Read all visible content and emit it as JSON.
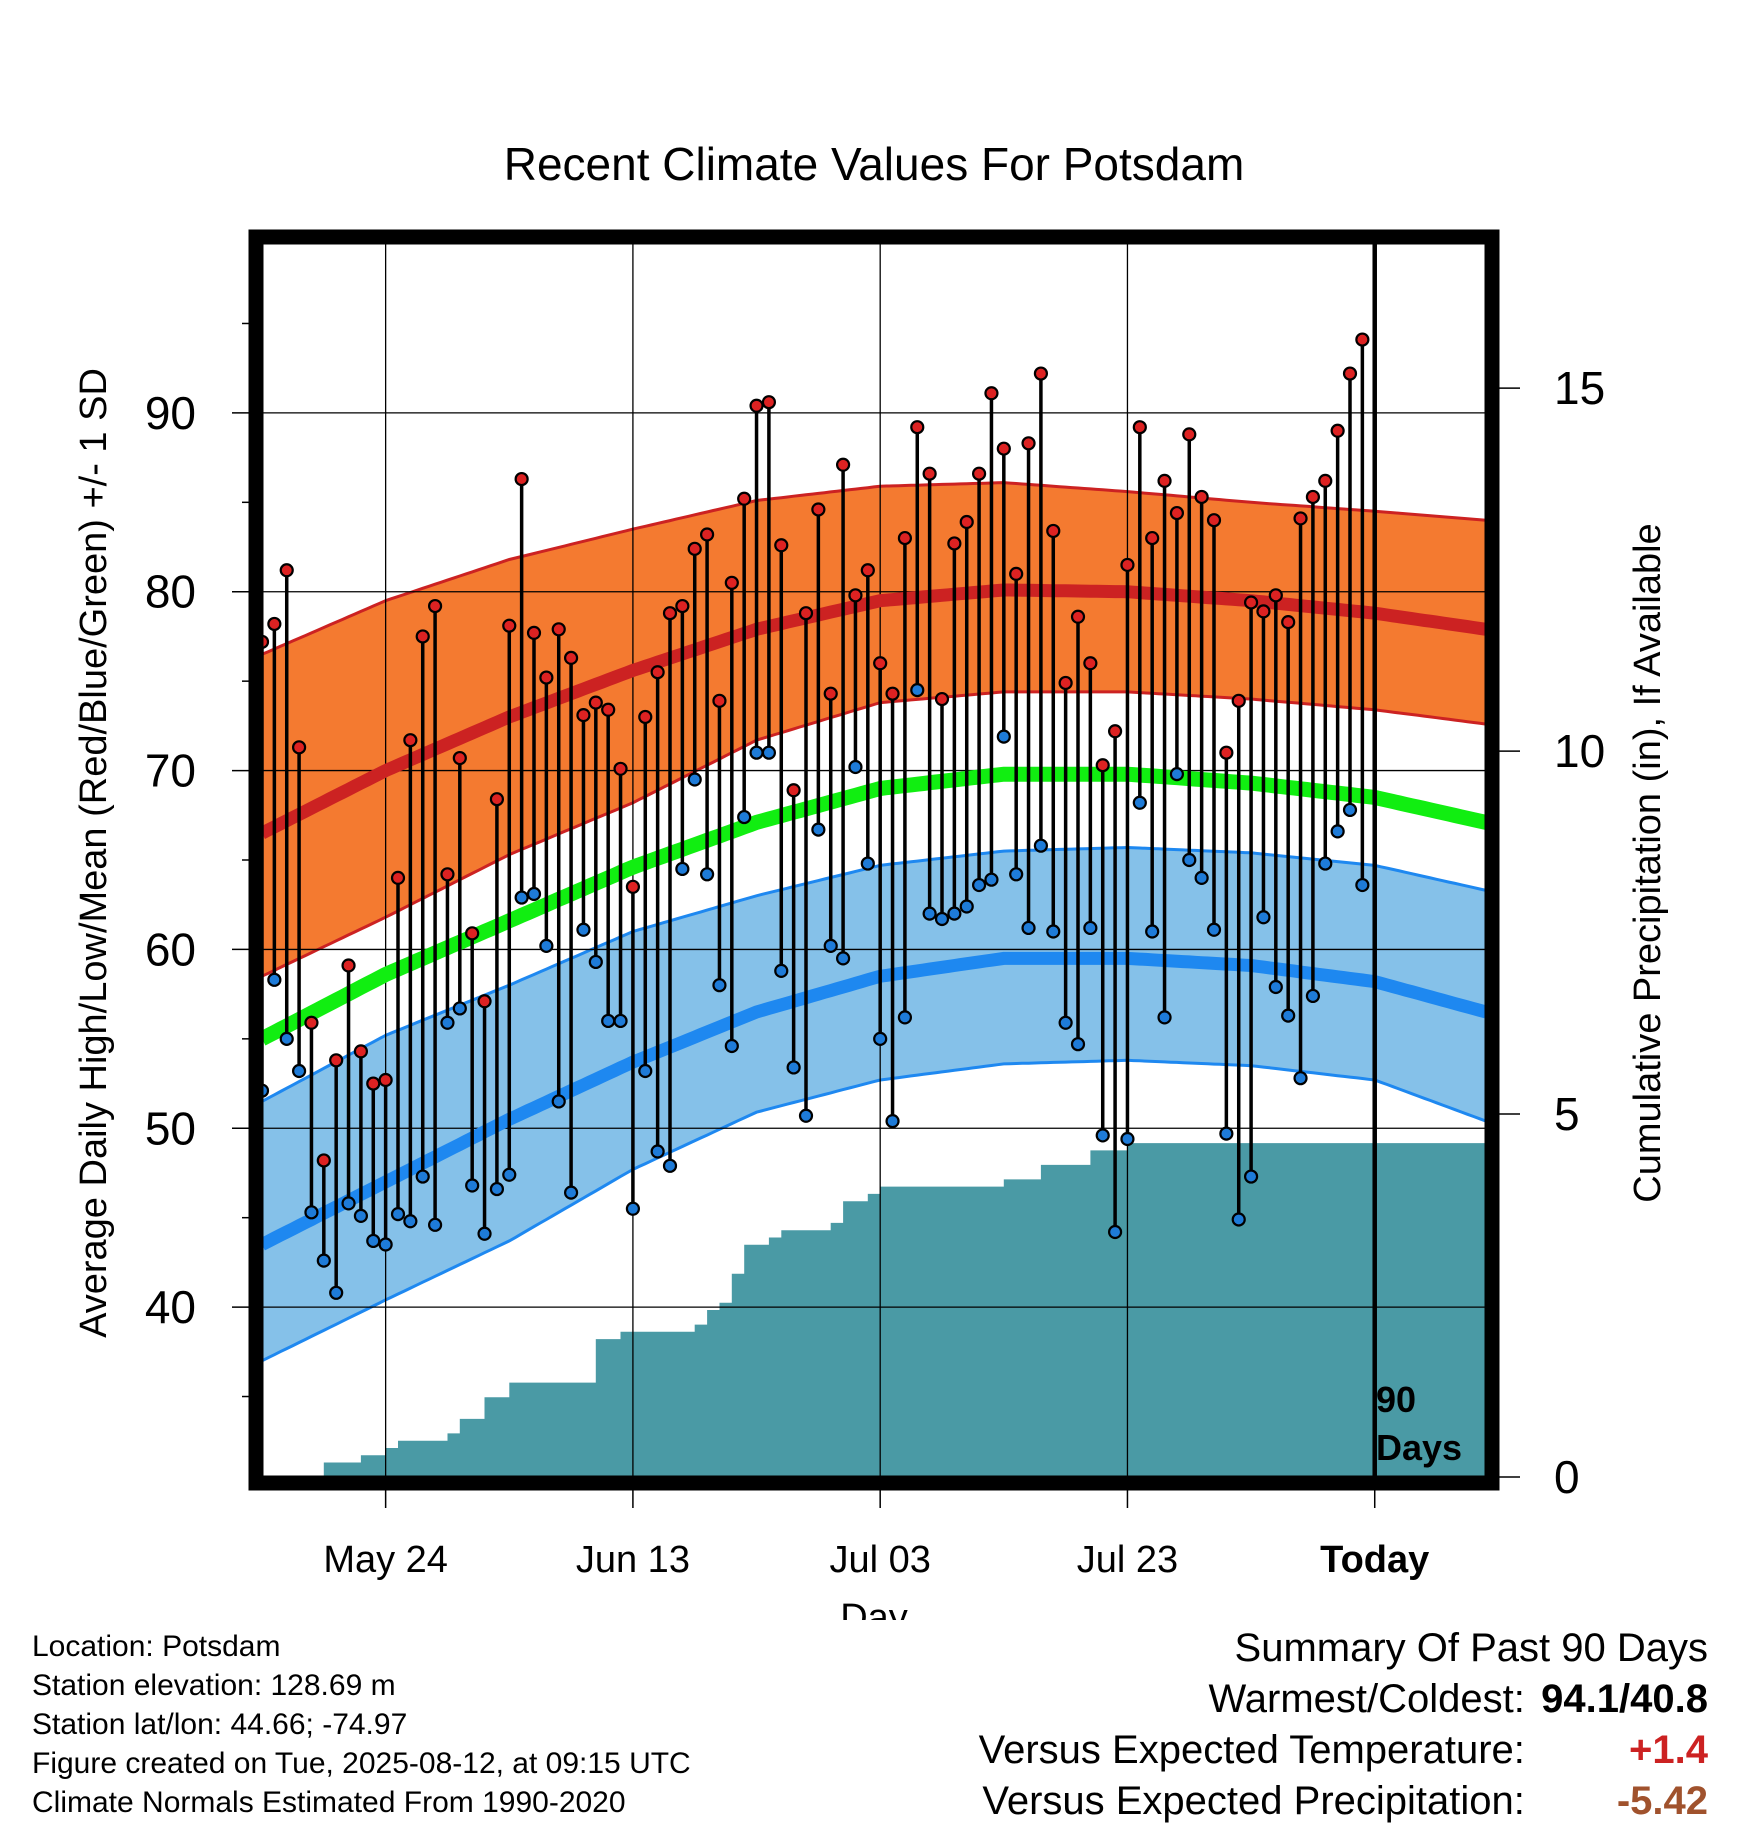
{
  "title": "Recent Climate Values For Potsdam",
  "y_label_left": "Average Daily High/Low/Mean (Red/Blue/Green) +/- 1 SD",
  "y_label_right": "Cumulative Precipitation (in), If Available",
  "x_label": "Day",
  "marker_label_line1": "90",
  "marker_label_line2": "Days",
  "colors": {
    "high_band": "#f47a30",
    "high_line": "#cc2222",
    "low_band": "#85c1e9",
    "low_line": "#1e88f0",
    "mean_line": "#11ee11",
    "precip": "#4a9aa5",
    "high_dot": "#dd2222",
    "low_dot": "#1e7bd8"
  },
  "chart_data": {
    "type": "scatter",
    "x_axis": {
      "type": "day_offset_relative_to_today",
      "range": [
        -90,
        9
      ],
      "tick_labels": [
        {
          "day": -80,
          "label": "May 24"
        },
        {
          "day": -60,
          "label": "Jun 13"
        },
        {
          "day": -40,
          "label": "Jul 03"
        },
        {
          "day": -20,
          "label": "Jul 23"
        },
        {
          "day": 0,
          "label": "Today"
        }
      ]
    },
    "y_left": {
      "range": [
        30.5,
        99.5
      ],
      "ticks": [
        40,
        50,
        60,
        70,
        80,
        90
      ]
    },
    "y_right": {
      "range": [
        0,
        17.0
      ],
      "ticks": [
        0,
        5,
        10,
        15
      ]
    },
    "normal_high": {
      "day": [
        -90,
        -80,
        -70,
        -60,
        -50,
        -40,
        -30,
        -20,
        -10,
        0,
        9
      ],
      "mean": [
        66.5,
        70.0,
        73.0,
        75.6,
        77.9,
        79.5,
        80.1,
        80.0,
        79.5,
        78.8,
        77.9
      ],
      "upper": [
        76.5,
        79.5,
        81.8,
        83.5,
        85.1,
        85.9,
        86.1,
        85.6,
        85.0,
        84.5,
        84.0
      ],
      "lower": [
        58.5,
        61.8,
        65.3,
        68.2,
        71.7,
        73.8,
        74.4,
        74.4,
        74.0,
        73.4,
        72.6
      ]
    },
    "normal_low": {
      "day": [
        -90,
        -80,
        -70,
        -60,
        -50,
        -40,
        -30,
        -20,
        -10,
        0,
        9
      ],
      "mean": [
        43.5,
        47.0,
        50.5,
        53.7,
        56.5,
        58.5,
        59.5,
        59.5,
        59.1,
        58.2,
        56.5
      ],
      "upper": [
        51.5,
        55.2,
        58.0,
        61.0,
        63.0,
        64.7,
        65.5,
        65.7,
        65.4,
        64.7,
        63.3
      ],
      "lower": [
        37.0,
        40.4,
        43.7,
        47.7,
        50.9,
        52.7,
        53.6,
        53.8,
        53.5,
        52.7,
        50.4
      ]
    },
    "normal_mean": {
      "day": [
        -90,
        -80,
        -70,
        -60,
        -50,
        -40,
        -30,
        -20,
        -10,
        0,
        9
      ],
      "values": [
        55.0,
        58.6,
        61.6,
        64.6,
        67.1,
        69.0,
        69.8,
        69.8,
        69.3,
        68.5,
        67.1
      ]
    },
    "daily_high": [
      77.2,
      78.2,
      81.2,
      71.3,
      55.9,
      48.2,
      53.8,
      59.1,
      54.3,
      52.5,
      52.7,
      64.0,
      71.7,
      77.5,
      79.2,
      64.2,
      70.7,
      60.9,
      57.1,
      68.4,
      78.1,
      86.3,
      77.7,
      75.2,
      77.9,
      76.3,
      73.1,
      73.8,
      73.4,
      70.1,
      63.5,
      73.0,
      75.5,
      78.8,
      79.2,
      82.4,
      83.2,
      73.9,
      80.5,
      85.2,
      90.4,
      90.6,
      82.6,
      68.9,
      78.8,
      84.6,
      74.3,
      87.1,
      79.8,
      81.2,
      76.0,
      74.3,
      83.0,
      89.2,
      86.6,
      74.0,
      82.7,
      83.9,
      86.6,
      91.1,
      88.0,
      81.0,
      88.3,
      92.2,
      83.4,
      74.9,
      78.6,
      76.0,
      70.3,
      72.2,
      81.5,
      89.2,
      83.0,
      86.2,
      84.4,
      88.8,
      85.3,
      84.0,
      71.0,
      73.9,
      79.4,
      78.9,
      79.8,
      78.3,
      84.1,
      85.3,
      86.2,
      89.0,
      92.2,
      94.1
    ],
    "daily_low": [
      52.1,
      58.3,
      55.0,
      53.2,
      45.3,
      42.6,
      40.8,
      45.8,
      45.1,
      43.7,
      43.5,
      45.2,
      44.8,
      47.3,
      44.6,
      55.9,
      56.7,
      46.8,
      44.1,
      46.6,
      47.4,
      62.9,
      63.1,
      60.2,
      51.5,
      46.4,
      61.1,
      59.3,
      56.0,
      56.0,
      45.5,
      53.2,
      48.7,
      47.9,
      64.5,
      69.5,
      64.2,
      58.0,
      54.6,
      67.4,
      71.0,
      71.0,
      58.8,
      53.4,
      50.7,
      66.7,
      60.2,
      59.5,
      70.2,
      64.8,
      55.0,
      50.4,
      56.2,
      74.5,
      62.0,
      61.7,
      62.0,
      62.4,
      63.6,
      63.9,
      71.9,
      64.2,
      61.2,
      65.8,
      61.0,
      55.9,
      54.7,
      61.2,
      49.6,
      44.2,
      49.4,
      68.2,
      61.0,
      56.2,
      69.8,
      65.0,
      64.0,
      61.1,
      49.7,
      44.9,
      47.3,
      61.8,
      57.9,
      56.3,
      52.8,
      57.4,
      64.8,
      66.6,
      67.8,
      63.6
    ],
    "cumulative_precip": {
      "day": [
        -90,
        -85,
        -82,
        -80,
        -79,
        -75,
        -74,
        -72,
        -70,
        -67,
        -64,
        -63,
        -61,
        -57,
        -55,
        -54,
        -53,
        -52,
        -51,
        -49,
        -48,
        -47,
        -45,
        -44,
        -43,
        -42,
        -41,
        -40,
        -37,
        -35,
        -30,
        -29,
        -27,
        -25,
        -23,
        -20,
        -17,
        -10,
        0,
        9
      ],
      "values": [
        0.0,
        0.2,
        0.3,
        0.4,
        0.5,
        0.6,
        0.8,
        1.1,
        1.3,
        1.3,
        1.3,
        1.9,
        2.0,
        2.0,
        2.1,
        2.3,
        2.4,
        2.8,
        3.2,
        3.3,
        3.4,
        3.4,
        3.4,
        3.5,
        3.8,
        3.8,
        3.9,
        4.0,
        4.0,
        4.0,
        4.1,
        4.1,
        4.3,
        4.3,
        4.5,
        4.6,
        4.6,
        4.6,
        4.6,
        4.6
      ]
    },
    "marker": {
      "day": 0,
      "label": "90 Days"
    }
  },
  "footer": {
    "location": "Location: Potsdam",
    "elevation": "Station elevation: 128.69 m",
    "latlon": "Station lat/lon: 44.66; -74.97",
    "created": "Figure created on Tue, 2025-08-12, at 09:15 UTC",
    "normals": "Climate Normals Estimated From 1990-2020"
  },
  "summary": {
    "heading": "Summary Of Past 90 Days",
    "warm_cold_label": "Warmest/Coldest:",
    "warm_cold_value": "94.1/40.8",
    "temp_label": "Versus Expected Temperature:",
    "temp_value": "+1.4",
    "precip_label": "Versus Expected Precipitation:",
    "precip_value": "-5.42"
  }
}
